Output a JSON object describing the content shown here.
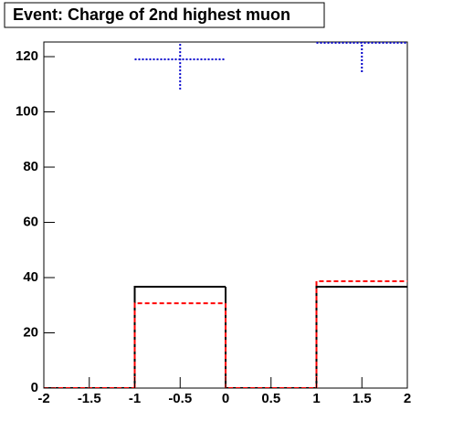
{
  "chart_data": {
    "type": "histogram",
    "title": "Event: Charge of 2nd highest muon",
    "bins": [
      -2,
      -1,
      0,
      1,
      2
    ],
    "series": [
      {
        "color": "#000000",
        "dash": "solid",
        "values": [
          0,
          36.7,
          0,
          36.7
        ]
      },
      {
        "color": "#ff0000",
        "dash": "dashed",
        "values": [
          0,
          30.7,
          0,
          38.7
        ]
      },
      {
        "color": "#0000cc",
        "dash": "dotted",
        "values": [
          null,
          119,
          null,
          125
        ],
        "errors": [
          null,
          10.9,
          null,
          11.2
        ]
      }
    ],
    "xlim": [
      -2,
      2
    ],
    "xticks": [
      -2,
      -1.5,
      -1,
      -0.5,
      0,
      0.5,
      1,
      1.5,
      2
    ],
    "ylim": [
      0,
      125.3
    ],
    "yticks": [
      0,
      20,
      40,
      60,
      80,
      100,
      120
    ]
  }
}
